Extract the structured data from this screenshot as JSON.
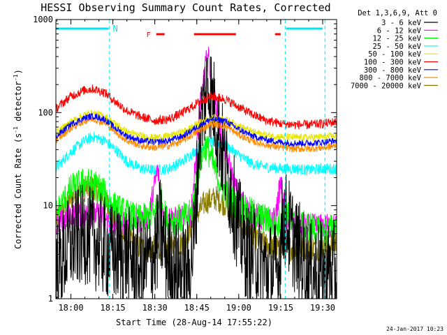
{
  "chart_data": {
    "type": "line",
    "title": "HESSI Observing Summary Count Rates, Corrected",
    "xlabel": "Start Time (28-Aug-14 17:55:22)",
    "ylabel_prefix": "Corrected Count Rate (s",
    "ylabel_sup1": "-1",
    "ylabel_mid": " detector",
    "ylabel_sup2": "-1",
    "ylabel_suffix": ")",
    "yscale": "log",
    "ylim": [
      1,
      1000
    ],
    "xlim_minutes": [
      -5.37,
      95.0
    ],
    "x_ticks": [
      {
        "minutes": 0,
        "label": "18:00"
      },
      {
        "minutes": 15,
        "label": "18:15"
      },
      {
        "minutes": 30,
        "label": "18:30"
      },
      {
        "minutes": 45,
        "label": "18:45"
      },
      {
        "minutes": 60,
        "label": "19:00"
      },
      {
        "minutes": 75,
        "label": "19:15"
      },
      {
        "minutes": 90,
        "label": "19:30"
      }
    ],
    "y_ticks": [
      {
        "value": 1,
        "label": "1"
      },
      {
        "value": 10,
        "label": "10"
      },
      {
        "value": 100,
        "label": "100"
      },
      {
        "value": 1000,
        "label": "1000"
      }
    ],
    "legend_header": "Det 1,3,6,9, Att 0",
    "legend_placement": "right",
    "series": [
      {
        "name": "3 - 6 keV",
        "color": "#000000",
        "noise": 0.55,
        "points": [
          [
            -5.4,
            2
          ],
          [
            0,
            4
          ],
          [
            5,
            5
          ],
          [
            10,
            4
          ],
          [
            15,
            3
          ],
          [
            20,
            3
          ],
          [
            25,
            2
          ],
          [
            30,
            3
          ],
          [
            32,
            6
          ],
          [
            34,
            3
          ],
          [
            38,
            2
          ],
          [
            42,
            2
          ],
          [
            44,
            4
          ],
          [
            46,
            60
          ],
          [
            48,
            150
          ],
          [
            49,
            220
          ],
          [
            51,
            120
          ],
          [
            54,
            40
          ],
          [
            57,
            15
          ],
          [
            60,
            6
          ],
          [
            63,
            3
          ],
          [
            66,
            3
          ],
          [
            70,
            2
          ],
          [
            74,
            2
          ],
          [
            76,
            8
          ],
          [
            80,
            4
          ],
          [
            85,
            2
          ],
          [
            90,
            2
          ],
          [
            95,
            2
          ]
        ]
      },
      {
        "name": "6 - 12 keV",
        "color": "#ff00ff",
        "noise": 0.14,
        "points": [
          [
            -5.4,
            6
          ],
          [
            0,
            8
          ],
          [
            5,
            8
          ],
          [
            10,
            8
          ],
          [
            15,
            6
          ],
          [
            20,
            7
          ],
          [
            25,
            7
          ],
          [
            28,
            8
          ],
          [
            31,
            25
          ],
          [
            33,
            8
          ],
          [
            38,
            7
          ],
          [
            43,
            8
          ],
          [
            46,
            100
          ],
          [
            48,
            300
          ],
          [
            49,
            420
          ],
          [
            51,
            160
          ],
          [
            54,
            55
          ],
          [
            57,
            24
          ],
          [
            60,
            12
          ],
          [
            65,
            8
          ],
          [
            70,
            7
          ],
          [
            73,
            7
          ],
          [
            75,
            18
          ],
          [
            77,
            7
          ],
          [
            82,
            6
          ],
          [
            88,
            6
          ],
          [
            95,
            6
          ]
        ]
      },
      {
        "name": "12 - 25 keV",
        "color": "#00ff00",
        "noise": 0.17,
        "points": [
          [
            -5.4,
            8
          ],
          [
            0,
            15
          ],
          [
            5,
            18
          ],
          [
            10,
            16
          ],
          [
            15,
            10
          ],
          [
            20,
            8
          ],
          [
            25,
            7
          ],
          [
            30,
            8
          ],
          [
            32,
            14
          ],
          [
            34,
            7
          ],
          [
            38,
            7
          ],
          [
            43,
            8
          ],
          [
            46,
            28
          ],
          [
            48,
            45
          ],
          [
            49,
            40
          ],
          [
            52,
            22
          ],
          [
            55,
            14
          ],
          [
            58,
            11
          ],
          [
            62,
            9
          ],
          [
            66,
            8
          ],
          [
            70,
            7
          ],
          [
            74,
            6
          ],
          [
            76,
            9
          ],
          [
            80,
            6
          ],
          [
            85,
            6
          ],
          [
            90,
            5
          ],
          [
            95,
            6
          ]
        ]
      },
      {
        "name": "25 - 50 keV",
        "color": "#00ffff",
        "noise": 0.06,
        "points": [
          [
            -5.4,
            25
          ],
          [
            0,
            38
          ],
          [
            5,
            50
          ],
          [
            8,
            55
          ],
          [
            12,
            50
          ],
          [
            16,
            40
          ],
          [
            20,
            30
          ],
          [
            25,
            25
          ],
          [
            30,
            24
          ],
          [
            35,
            25
          ],
          [
            40,
            30
          ],
          [
            45,
            40
          ],
          [
            50,
            48
          ],
          [
            55,
            45
          ],
          [
            60,
            35
          ],
          [
            65,
            28
          ],
          [
            70,
            26
          ],
          [
            75,
            25
          ],
          [
            80,
            25
          ],
          [
            85,
            24
          ],
          [
            90,
            25
          ],
          [
            95,
            25
          ]
        ]
      },
      {
        "name": "50 - 100 keV",
        "color": "#e6e600",
        "noise": 0.04,
        "points": [
          [
            -5.4,
            60
          ],
          [
            0,
            80
          ],
          [
            5,
            95
          ],
          [
            8,
            98
          ],
          [
            12,
            92
          ],
          [
            16,
            75
          ],
          [
            20,
            62
          ],
          [
            25,
            56
          ],
          [
            30,
            54
          ],
          [
            35,
            56
          ],
          [
            40,
            62
          ],
          [
            45,
            75
          ],
          [
            50,
            88
          ],
          [
            55,
            85
          ],
          [
            60,
            72
          ],
          [
            65,
            62
          ],
          [
            70,
            57
          ],
          [
            75,
            55
          ],
          [
            80,
            54
          ],
          [
            85,
            54
          ],
          [
            90,
            55
          ],
          [
            95,
            56
          ]
        ]
      },
      {
        "name": "100 - 300 keV",
        "color": "#ff0000",
        "noise": 0.05,
        "points": [
          [
            -5.4,
            110
          ],
          [
            0,
            150
          ],
          [
            5,
            175
          ],
          [
            8,
            180
          ],
          [
            12,
            165
          ],
          [
            16,
            130
          ],
          [
            20,
            105
          ],
          [
            25,
            90
          ],
          [
            30,
            82
          ],
          [
            35,
            85
          ],
          [
            40,
            100
          ],
          [
            45,
            125
          ],
          [
            50,
            150
          ],
          [
            55,
            140
          ],
          [
            60,
            115
          ],
          [
            65,
            95
          ],
          [
            70,
            82
          ],
          [
            75,
            76
          ],
          [
            80,
            74
          ],
          [
            85,
            74
          ],
          [
            90,
            76
          ],
          [
            95,
            80
          ]
        ]
      },
      {
        "name": "300 - 800 keV",
        "color": "#0000ff",
        "noise": 0.035,
        "points": [
          [
            -5.4,
            55
          ],
          [
            0,
            75
          ],
          [
            5,
            88
          ],
          [
            8,
            92
          ],
          [
            12,
            85
          ],
          [
            16,
            68
          ],
          [
            20,
            56
          ],
          [
            25,
            50
          ],
          [
            30,
            48
          ],
          [
            35,
            50
          ],
          [
            40,
            56
          ],
          [
            45,
            70
          ],
          [
            50,
            85
          ],
          [
            55,
            82
          ],
          [
            60,
            66
          ],
          [
            65,
            56
          ],
          [
            70,
            51
          ],
          [
            75,
            48
          ],
          [
            80,
            47
          ],
          [
            85,
            47
          ],
          [
            90,
            48
          ],
          [
            95,
            50
          ]
        ]
      },
      {
        "name": "800 - 7000 keV",
        "color": "#ff8c00",
        "noise": 0.04,
        "points": [
          [
            -5.4,
            50
          ],
          [
            0,
            68
          ],
          [
            5,
            82
          ],
          [
            8,
            86
          ],
          [
            12,
            78
          ],
          [
            16,
            62
          ],
          [
            20,
            50
          ],
          [
            25,
            44
          ],
          [
            30,
            42
          ],
          [
            35,
            44
          ],
          [
            40,
            50
          ],
          [
            45,
            62
          ],
          [
            50,
            76
          ],
          [
            55,
            72
          ],
          [
            60,
            58
          ],
          [
            65,
            49
          ],
          [
            70,
            45
          ],
          [
            75,
            42
          ],
          [
            80,
            41
          ],
          [
            85,
            41
          ],
          [
            90,
            42
          ],
          [
            95,
            44
          ]
        ]
      },
      {
        "name": "7000 - 20000 keV",
        "color": "#8b7d00",
        "noise": 0.14,
        "points": [
          [
            -5.4,
            7
          ],
          [
            0,
            12
          ],
          [
            5,
            15
          ],
          [
            8,
            16
          ],
          [
            12,
            12
          ],
          [
            15,
            8
          ],
          [
            18,
            5
          ],
          [
            22,
            4
          ],
          [
            25,
            3.5
          ],
          [
            30,
            3.5
          ],
          [
            35,
            3.5
          ],
          [
            40,
            4
          ],
          [
            44,
            7
          ],
          [
            48,
            11
          ],
          [
            52,
            12
          ],
          [
            56,
            10
          ],
          [
            60,
            7
          ],
          [
            64,
            5
          ],
          [
            68,
            4
          ],
          [
            72,
            3.5
          ],
          [
            76,
            3.5
          ],
          [
            82,
            3.5
          ],
          [
            88,
            3.5
          ],
          [
            95,
            4
          ]
        ]
      }
    ],
    "attenuator_bar": {
      "color": "#00e5ee",
      "label": "N",
      "segments": [
        [
          -5.4,
          13.5
        ],
        [
          77,
          90
        ]
      ]
    },
    "flare_bar": {
      "color": "#ff0000",
      "label": "F",
      "segments": [
        [
          30.5,
          33.5
        ],
        [
          44,
          59
        ],
        [
          73,
          75
        ]
      ]
    },
    "dashed_markers_minutes": [
      13.8,
      76.6,
      90.8
    ]
  },
  "footer": {
    "date": "24-Jan-2017 10:23"
  }
}
